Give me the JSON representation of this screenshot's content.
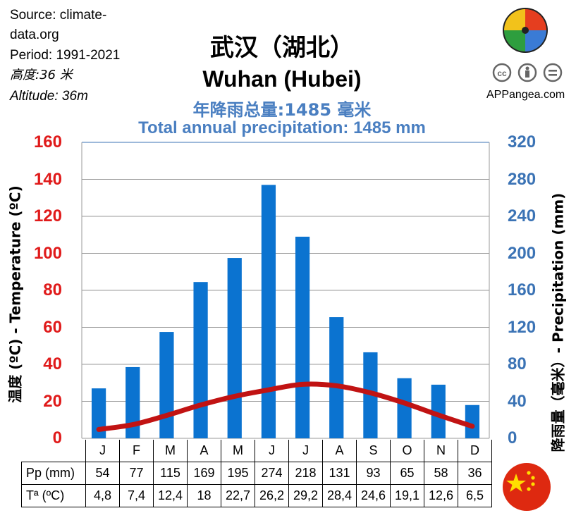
{
  "meta": {
    "source": "Source: climate-",
    "source2": "data.org",
    "period": "Period: 1991-2021",
    "altitude_cn": "高度:36 米",
    "altitude_en": "Altitude: 36m"
  },
  "title_cn": "武汉（湖北）",
  "title_en": "Wuhan (Hubei)",
  "subtitle_cn": "年降雨总量:1485 毫米",
  "subtitle_en": "Total annual precipitation: 1485 mm",
  "brand": "APPangea.com",
  "colors": {
    "temp_axis": "#e01a1a",
    "precip_axis": "#3b73b5",
    "bars": "#0b73d0",
    "temp_line": "#c11313"
  },
  "icons": {
    "logo": "puzzle-logo-icon",
    "cc": "creative-commons-icon",
    "flag": "china-flag-icon"
  },
  "table": {
    "pp_header": "Pp (mm)",
    "t_header": "Tª (ºC)",
    "pp_values": [
      "54",
      "77",
      "115",
      "169",
      "195",
      "274",
      "218",
      "131",
      "93",
      "65",
      "58",
      "36"
    ],
    "t_values": [
      "4,8",
      "7,4",
      "12,4",
      "18",
      "22,7",
      "26,2",
      "29,2",
      "28,4",
      "24,6",
      "19,1",
      "12,6",
      "6,5"
    ]
  },
  "chart_data": {
    "type": "bar",
    "categories": [
      "J",
      "F",
      "M",
      "A",
      "M",
      "J",
      "J",
      "A",
      "S",
      "O",
      "N",
      "D"
    ],
    "series": [
      {
        "values": [
          54,
          77,
          115,
          169,
          195,
          274,
          218,
          131,
          93,
          65,
          58,
          36
        ]
      },
      {
        "values": [
          4.8,
          7.4,
          12.4,
          18,
          22.7,
          26.2,
          29.2,
          28.4,
          24.6,
          19.1,
          12.6,
          6.5
        ]
      }
    ],
    "ylabel_left": "温度 (ºC) - Temperature  (ºC)",
    "ylabel_right": "降雨量（毫米）- Precipitation  (mm)",
    "ylim_left": [
      0,
      160
    ],
    "ylim_right": [
      0,
      320
    ],
    "yticks_left": [
      "0",
      "20",
      "40",
      "60",
      "80",
      "100",
      "120",
      "140",
      "160"
    ],
    "yticks_right": [
      "0",
      "40",
      "80",
      "120",
      "160",
      "200",
      "240",
      "280",
      "320"
    ],
    "grid": true
  }
}
